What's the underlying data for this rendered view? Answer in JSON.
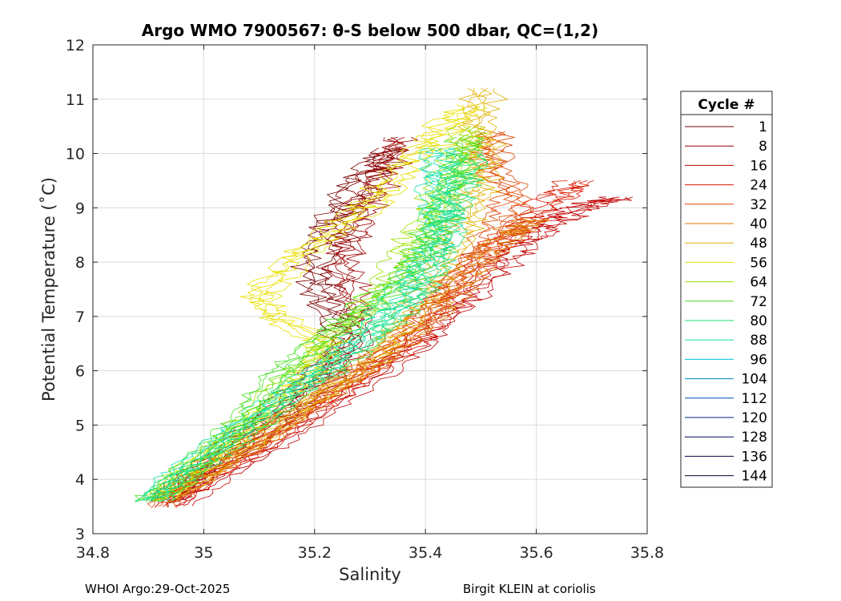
{
  "chart_data": {
    "type": "line",
    "title": "Argo WMO 7900567: θ-S below 500 dbar,  QC=(1,2)",
    "xlabel": "Salinity",
    "ylabel": "Potential Temperature (˚C)",
    "xlim": [
      34.8,
      35.8
    ],
    "ylim": [
      3,
      12
    ],
    "xticks": [
      "34.8",
      "35",
      "35.2",
      "35.4",
      "35.6",
      "35.8"
    ],
    "yticks": [
      "3",
      "4",
      "5",
      "6",
      "7",
      "8",
      "9",
      "10",
      "11",
      "12"
    ],
    "grid": true,
    "legend_title": "Cycle #",
    "legend_position": "outside-right",
    "series": [
      {
        "name": "1",
        "color": "#7a0000",
        "points": [
          [
            34.93,
            3.6
          ],
          [
            34.97,
            4.0
          ],
          [
            35.04,
            4.6
          ],
          [
            35.12,
            5.2
          ],
          [
            35.2,
            5.9
          ],
          [
            35.25,
            6.5
          ],
          [
            35.22,
            7.2
          ],
          [
            35.2,
            7.9
          ],
          [
            35.22,
            8.5
          ],
          [
            35.26,
            9.1
          ],
          [
            35.3,
            9.7
          ],
          [
            35.34,
            10.1
          ]
        ]
      },
      {
        "name": "8",
        "color": "#9c0000",
        "points": [
          [
            34.94,
            3.6
          ],
          [
            34.99,
            4.0
          ],
          [
            35.07,
            4.6
          ],
          [
            35.15,
            5.2
          ],
          [
            35.23,
            5.9
          ],
          [
            35.28,
            6.6
          ],
          [
            35.27,
            7.3
          ],
          [
            35.25,
            8.0
          ],
          [
            35.27,
            8.6
          ],
          [
            35.3,
            9.2
          ],
          [
            35.33,
            9.8
          ],
          [
            35.35,
            10.3
          ]
        ]
      },
      {
        "name": "16",
        "color": "#c20000",
        "points": [
          [
            34.95,
            3.5
          ],
          [
            35.02,
            4.0
          ],
          [
            35.12,
            4.6
          ],
          [
            35.22,
            5.3
          ],
          [
            35.32,
            6.0
          ],
          [
            35.4,
            6.6
          ],
          [
            35.46,
            7.2
          ],
          [
            35.52,
            7.8
          ],
          [
            35.57,
            8.3
          ],
          [
            35.62,
            8.7
          ],
          [
            35.68,
            9.0
          ],
          [
            35.75,
            9.2
          ]
        ]
      },
      {
        "name": "24",
        "color": "#d81a00",
        "points": [
          [
            34.93,
            3.5
          ],
          [
            35.0,
            4.0
          ],
          [
            35.1,
            4.6
          ],
          [
            35.2,
            5.3
          ],
          [
            35.3,
            6.0
          ],
          [
            35.38,
            6.6
          ],
          [
            35.42,
            7.2
          ],
          [
            35.48,
            7.9
          ],
          [
            35.55,
            8.5
          ],
          [
            35.62,
            9.1
          ],
          [
            35.68,
            9.5
          ]
        ]
      },
      {
        "name": "32",
        "color": "#e04400",
        "points": [
          [
            34.92,
            3.5
          ],
          [
            34.98,
            4.0
          ],
          [
            35.08,
            4.6
          ],
          [
            35.18,
            5.3
          ],
          [
            35.28,
            6.0
          ],
          [
            35.36,
            6.6
          ],
          [
            35.42,
            7.3
          ],
          [
            35.48,
            8.0
          ],
          [
            35.53,
            8.6
          ],
          [
            35.56,
            9.2
          ],
          [
            35.52,
            9.8
          ],
          [
            35.52,
            10.4
          ]
        ]
      },
      {
        "name": "40",
        "color": "#e07800",
        "points": [
          [
            34.93,
            3.6
          ],
          [
            35.0,
            4.1
          ],
          [
            35.1,
            4.7
          ],
          [
            35.2,
            5.4
          ],
          [
            35.3,
            6.1
          ],
          [
            35.38,
            6.7
          ],
          [
            35.44,
            7.3
          ],
          [
            35.5,
            8.0
          ],
          [
            35.55,
            8.5
          ],
          [
            35.6,
            8.8
          ]
        ]
      },
      {
        "name": "48",
        "color": "#e0b000",
        "points": [
          [
            34.94,
            3.7
          ],
          [
            35.02,
            4.2
          ],
          [
            35.12,
            4.9
          ],
          [
            35.22,
            5.6
          ],
          [
            35.3,
            6.2
          ],
          [
            35.36,
            6.8
          ],
          [
            35.4,
            7.5
          ],
          [
            35.44,
            8.2
          ],
          [
            35.48,
            8.9
          ],
          [
            35.5,
            9.6
          ],
          [
            35.5,
            10.3
          ],
          [
            35.5,
            11.2
          ]
        ]
      },
      {
        "name": "56",
        "color": "#e8e000",
        "points": [
          [
            34.92,
            3.6
          ],
          [
            34.98,
            4.2
          ],
          [
            35.06,
            4.8
          ],
          [
            35.14,
            5.4
          ],
          [
            35.2,
            6.0
          ],
          [
            35.22,
            6.5
          ],
          [
            35.13,
            7.0
          ],
          [
            35.1,
            7.4
          ],
          [
            35.15,
            7.9
          ],
          [
            35.22,
            8.5
          ],
          [
            35.3,
            9.1
          ],
          [
            35.36,
            9.7
          ],
          [
            35.42,
            10.3
          ],
          [
            35.48,
            10.9
          ]
        ]
      },
      {
        "name": "64",
        "color": "#9be000",
        "points": [
          [
            34.91,
            3.6
          ],
          [
            34.96,
            4.1
          ],
          [
            35.04,
            4.7
          ],
          [
            35.1,
            5.3
          ],
          [
            35.16,
            5.9
          ],
          [
            35.22,
            6.4
          ],
          [
            35.28,
            7.0
          ],
          [
            35.34,
            7.7
          ],
          [
            35.38,
            8.4
          ],
          [
            35.42,
            9.1
          ],
          [
            35.46,
            9.8
          ],
          [
            35.48,
            10.5
          ]
        ]
      },
      {
        "name": "72",
        "color": "#44e020",
        "points": [
          [
            34.9,
            3.6
          ],
          [
            34.95,
            4.0
          ],
          [
            35.02,
            4.6
          ],
          [
            35.08,
            5.2
          ],
          [
            35.13,
            5.9
          ],
          [
            35.2,
            6.5
          ],
          [
            35.28,
            7.1
          ],
          [
            35.36,
            7.7
          ],
          [
            35.4,
            8.3
          ],
          [
            35.43,
            8.9
          ],
          [
            35.46,
            9.6
          ],
          [
            35.48,
            10.3
          ]
        ]
      },
      {
        "name": "80",
        "color": "#1ee070",
        "points": [
          [
            34.91,
            3.6
          ],
          [
            34.96,
            4.0
          ],
          [
            35.04,
            4.6
          ],
          [
            35.12,
            5.2
          ],
          [
            35.2,
            5.8
          ],
          [
            35.28,
            6.4
          ],
          [
            35.34,
            7.0
          ],
          [
            35.4,
            7.6
          ],
          [
            35.42,
            8.2
          ],
          [
            35.44,
            8.8
          ],
          [
            35.46,
            9.4
          ],
          [
            35.48,
            10.0
          ]
        ]
      },
      {
        "name": "88",
        "color": "#10e0a8",
        "points": [
          [
            34.9,
            3.6
          ],
          [
            34.95,
            4.1
          ],
          [
            35.03,
            4.7
          ],
          [
            35.11,
            5.3
          ],
          [
            35.19,
            5.9
          ],
          [
            35.27,
            6.5
          ],
          [
            35.33,
            7.1
          ],
          [
            35.38,
            7.7
          ],
          [
            35.42,
            8.3
          ],
          [
            35.43,
            8.9
          ],
          [
            35.42,
            9.5
          ],
          [
            35.43,
            10.1
          ]
        ]
      },
      {
        "name": "96",
        "color": "#00c0d8",
        "points": []
      },
      {
        "name": "104",
        "color": "#0088c8",
        "points": []
      },
      {
        "name": "112",
        "color": "#0050b8",
        "points": []
      },
      {
        "name": "120",
        "color": "#00208c",
        "points": []
      },
      {
        "name": "128",
        "color": "#000c60",
        "points": []
      },
      {
        "name": "136",
        "color": "#000848",
        "points": []
      },
      {
        "name": "144",
        "color": "#000030",
        "points": []
      }
    ]
  },
  "footer": {
    "left": "WHOI Argo:29-Oct-2025",
    "right": "Birgit KLEIN at coriolis"
  }
}
